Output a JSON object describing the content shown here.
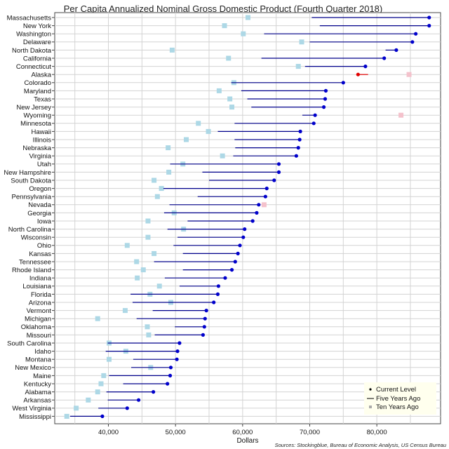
{
  "chart_data": {
    "type": "dot-range",
    "title": "Per Capita Annualized Nominal Gross Domestic Product (Fourth Quarter 2018)",
    "xlabel": "Dollars",
    "source": "Sources: Stockingblue, Bureau of Economic Analysis, US Census Bureau",
    "xlim": [
      32000,
      89500
    ],
    "xticks": [
      40000,
      50000,
      60000,
      70000,
      80000
    ],
    "xtick_labels": [
      "40,000",
      "50,000",
      "60,000",
      "70,000",
      "80,000"
    ],
    "grid": true,
    "legend": {
      "placement": "bottom-right",
      "entries": [
        "Current Level",
        "Five Years Ago",
        "Ten Years Ago"
      ]
    },
    "colors": {
      "current": "#0000cc",
      "five_years": "#00008b",
      "ten_years": "#add8e6",
      "decline_current": "#e00000",
      "decline_ten_years": "#f4c2cc",
      "grid": "#d3d3d3"
    },
    "states": [
      {
        "name": "Massachusetts",
        "current": 87800,
        "five_years_ago": 70300,
        "ten_years_ago": 60800
      },
      {
        "name": "New York",
        "current": 87800,
        "five_years_ago": 71500,
        "ten_years_ago": 57300
      },
      {
        "name": "Washington",
        "current": 85800,
        "five_years_ago": 63200,
        "ten_years_ago": 60100
      },
      {
        "name": "Delaware",
        "current": 85300,
        "five_years_ago": 70000,
        "ten_years_ago": 68800
      },
      {
        "name": "North Dakota",
        "current": 82900,
        "five_years_ago": 81300,
        "ten_years_ago": 49500
      },
      {
        "name": "California",
        "current": 81100,
        "five_years_ago": 62800,
        "ten_years_ago": 57900
      },
      {
        "name": "Connecticut",
        "current": 78300,
        "five_years_ago": 69300,
        "ten_years_ago": 68300
      },
      {
        "name": "Alaska",
        "current": 77200,
        "five_years_ago": 78700,
        "ten_years_ago": 84800
      },
      {
        "name": "Colorado",
        "current": 75000,
        "five_years_ago": 58300,
        "ten_years_ago": 58700
      },
      {
        "name": "Maryland",
        "current": 72400,
        "five_years_ago": 59800,
        "ten_years_ago": 56500
      },
      {
        "name": "Texas",
        "current": 72300,
        "five_years_ago": 60700,
        "ten_years_ago": 58100
      },
      {
        "name": "New Jersey",
        "current": 72100,
        "five_years_ago": 61300,
        "ten_years_ago": 58400
      },
      {
        "name": "Wyoming",
        "current": 70800,
        "five_years_ago": 68900,
        "ten_years_ago": 83600
      },
      {
        "name": "Minnesota",
        "current": 70600,
        "five_years_ago": 58800,
        "ten_years_ago": 53400
      },
      {
        "name": "Hawaii",
        "current": 68600,
        "five_years_ago": 56300,
        "ten_years_ago": 54900
      },
      {
        "name": "Illinois",
        "current": 68500,
        "five_years_ago": 58800,
        "ten_years_ago": 51600
      },
      {
        "name": "Nebraska",
        "current": 68300,
        "five_years_ago": 58900,
        "ten_years_ago": 48900
      },
      {
        "name": "Virginia",
        "current": 68000,
        "five_years_ago": 58600,
        "ten_years_ago": 57000
      },
      {
        "name": "Utah",
        "current": 65400,
        "five_years_ago": 49200,
        "ten_years_ago": 51100
      },
      {
        "name": "New Hampshire",
        "current": 65400,
        "five_years_ago": 54000,
        "ten_years_ago": 49000
      },
      {
        "name": "South Dakota",
        "current": 64700,
        "five_years_ago": 55000,
        "ten_years_ago": 46800
      },
      {
        "name": "Oregon",
        "current": 63600,
        "five_years_ago": 48200,
        "ten_years_ago": 47900
      },
      {
        "name": "Pennsylvania",
        "current": 63400,
        "five_years_ago": 53300,
        "ten_years_ago": 47300
      },
      {
        "name": "Nevada",
        "current": 62400,
        "five_years_ago": 49100,
        "ten_years_ago": 63200
      },
      {
        "name": "Georgia",
        "current": 62100,
        "five_years_ago": 48300,
        "ten_years_ago": 49800
      },
      {
        "name": "Iowa",
        "current": 61500,
        "five_years_ago": 51800,
        "ten_years_ago": 45900
      },
      {
        "name": "North Carolina",
        "current": 60300,
        "five_years_ago": 48800,
        "ten_years_ago": 51200
      },
      {
        "name": "Wisconsin",
        "current": 60100,
        "five_years_ago": 50300,
        "ten_years_ago": 45900
      },
      {
        "name": "Ohio",
        "current": 59600,
        "five_years_ago": 49700,
        "ten_years_ago": 42800
      },
      {
        "name": "Kansas",
        "current": 59300,
        "five_years_ago": 51100,
        "ten_years_ago": 46800
      },
      {
        "name": "Tennessee",
        "current": 58900,
        "five_years_ago": 46800,
        "ten_years_ago": 44200
      },
      {
        "name": "Rhode Island",
        "current": 58400,
        "five_years_ago": 51100,
        "ten_years_ago": 45200
      },
      {
        "name": "Indiana",
        "current": 57400,
        "five_years_ago": 48400,
        "ten_years_ago": 44300
      },
      {
        "name": "Louisiana",
        "current": 56400,
        "five_years_ago": 50600,
        "ten_years_ago": 47600
      },
      {
        "name": "Florida",
        "current": 56300,
        "five_years_ago": 43300,
        "ten_years_ago": 46200
      },
      {
        "name": "Arizona",
        "current": 55700,
        "five_years_ago": 43600,
        "ten_years_ago": 49300
      },
      {
        "name": "Vermont",
        "current": 54600,
        "five_years_ago": 46600,
        "ten_years_ago": 42500
      },
      {
        "name": "Michigan",
        "current": 54400,
        "five_years_ago": 44200,
        "ten_years_ago": 38400
      },
      {
        "name": "Oklahoma",
        "current": 54300,
        "five_years_ago": 49900,
        "ten_years_ago": 45800
      },
      {
        "name": "Missouri",
        "current": 54100,
        "five_years_ago": 46900,
        "ten_years_ago": 46000
      },
      {
        "name": "South Carolina",
        "current": 50600,
        "five_years_ago": 39900,
        "ten_years_ago": 40100
      },
      {
        "name": "Idaho",
        "current": 50300,
        "five_years_ago": 39600,
        "ten_years_ago": 42600
      },
      {
        "name": "Montana",
        "current": 50200,
        "five_years_ago": 43700,
        "ten_years_ago": 40100
      },
      {
        "name": "New Mexico",
        "current": 49300,
        "five_years_ago": 43400,
        "ten_years_ago": 46300
      },
      {
        "name": "Maine",
        "current": 49200,
        "five_years_ago": 40100,
        "ten_years_ago": 39300
      },
      {
        "name": "Kentucky",
        "current": 48800,
        "five_years_ago": 42200,
        "ten_years_ago": 38900
      },
      {
        "name": "Alabama",
        "current": 46700,
        "five_years_ago": 39700,
        "ten_years_ago": 38400
      },
      {
        "name": "Arkansas",
        "current": 44500,
        "five_years_ago": 39900,
        "ten_years_ago": 37000
      },
      {
        "name": "West Virginia",
        "current": 42800,
        "five_years_ago": 38500,
        "ten_years_ago": 35200
      },
      {
        "name": "Mississippi",
        "current": 39100,
        "five_years_ago": 34300,
        "ten_years_ago": 33800
      }
    ]
  }
}
